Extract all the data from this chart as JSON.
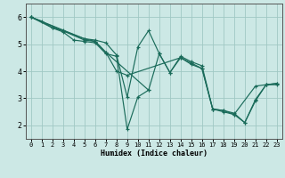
{
  "xlabel": "Humidex (Indice chaleur)",
  "ylabel": "",
  "bg_color": "#cce8e5",
  "grid_color": "#a0c8c4",
  "line_color": "#1a6b5a",
  "xlim": [
    -0.5,
    23.5
  ],
  "ylim": [
    1.5,
    6.5
  ],
  "yticks": [
    2,
    3,
    4,
    5,
    6
  ],
  "xticks": [
    0,
    1,
    2,
    3,
    4,
    5,
    6,
    7,
    8,
    9,
    10,
    11,
    12,
    13,
    14,
    15,
    16,
    17,
    18,
    19,
    20,
    21,
    22,
    23
  ],
  "lines": [
    {
      "x": [
        0,
        1,
        2,
        3,
        4,
        5,
        6,
        7,
        8,
        9,
        10,
        11
      ],
      "y": [
        6.0,
        5.85,
        5.6,
        5.45,
        5.15,
        5.1,
        5.05,
        4.65,
        4.55,
        1.85,
        3.05,
        3.3
      ]
    },
    {
      "x": [
        0,
        2,
        3,
        5,
        6,
        7,
        8,
        9,
        10,
        11,
        12,
        13,
        14,
        15,
        16,
        17,
        18,
        19,
        20,
        21,
        22,
        23
      ],
      "y": [
        6.0,
        5.6,
        5.5,
        5.2,
        5.15,
        5.05,
        4.6,
        3.05,
        4.9,
        5.5,
        4.65,
        3.95,
        4.55,
        4.35,
        4.2,
        2.6,
        2.55,
        2.45,
        2.1,
        2.9,
        3.5,
        3.55
      ]
    },
    {
      "x": [
        0,
        5,
        6,
        7,
        8,
        9,
        14,
        15,
        16,
        17,
        18,
        19,
        20,
        21,
        22,
        23
      ],
      "y": [
        6.0,
        5.15,
        5.1,
        4.7,
        4.0,
        3.85,
        4.5,
        4.25,
        4.1,
        2.6,
        2.55,
        2.4,
        2.1,
        2.95,
        3.5,
        3.55
      ]
    },
    {
      "x": [
        0,
        5,
        6,
        7,
        11,
        12,
        13,
        14,
        15,
        16,
        17,
        18,
        19,
        21,
        22,
        23
      ],
      "y": [
        6.0,
        5.2,
        5.1,
        4.7,
        3.3,
        4.65,
        3.95,
        4.5,
        4.3,
        4.1,
        2.6,
        2.5,
        2.4,
        3.45,
        3.5,
        3.5
      ]
    }
  ]
}
